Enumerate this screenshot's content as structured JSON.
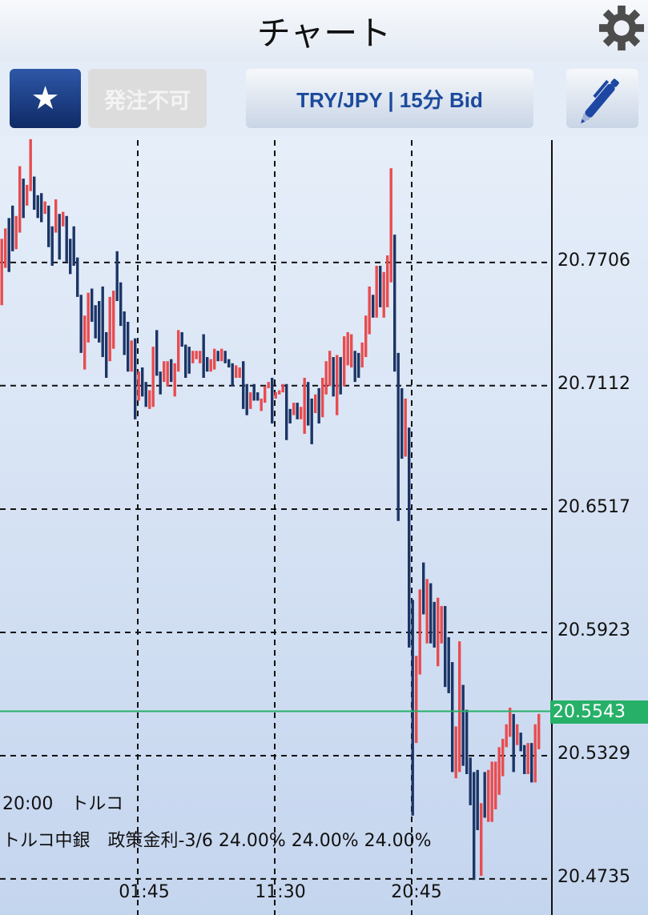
{
  "header": {
    "title": "チャート",
    "settings_icon": "gear-icon"
  },
  "toolbar": {
    "favorite_icon": "star-icon",
    "order_label": "発注不可",
    "pair_label": "TRY/JPY | 15分 Bid",
    "draw_icon": "pen-icon"
  },
  "colors": {
    "up": "#e84c4f",
    "down": "#1b3566",
    "current": "#27b068",
    "grid": "#111111"
  },
  "events": {
    "line1": "20:00　トルコ",
    "line2": "トルコ中銀　政策金利-3/6 24.00% 24.00% 24.00%"
  },
  "chart_data": {
    "type": "candlestick",
    "symbol": "TRY/JPY",
    "timeframe": "15分",
    "price_type": "Bid",
    "ylim": [
      20.4561,
      20.8315
    ],
    "y_ticks": [
      "20.7706",
      "20.7112",
      "20.6517",
      "20.5923",
      "20.5329",
      "20.4735"
    ],
    "x_ticks": [
      {
        "label": "01:45",
        "bar": 38
      },
      {
        "label": "11:30",
        "bar": 76
      },
      {
        "label": "20:45",
        "bar": 114
      }
    ],
    "grid": true,
    "current_price": "20.5543",
    "bars_format": [
      "high",
      "low",
      "up"
    ],
    "bars": [
      [
        20.782,
        20.75,
        1
      ],
      [
        20.787,
        20.768,
        1
      ],
      [
        20.792,
        20.766,
        0
      ],
      [
        20.798,
        20.776,
        0
      ],
      [
        20.793,
        20.777,
        1
      ],
      [
        20.817,
        20.785,
        1
      ],
      [
        20.811,
        20.792,
        0
      ],
      [
        20.808,
        20.798,
        1
      ],
      [
        20.83,
        20.805,
        1
      ],
      [
        20.812,
        20.796,
        0
      ],
      [
        20.803,
        20.792,
        0
      ],
      [
        20.804,
        20.79,
        0
      ],
      [
        20.8,
        20.794,
        1
      ],
      [
        20.798,
        20.778,
        0
      ],
      [
        20.788,
        20.769,
        0
      ],
      [
        20.801,
        20.785,
        1
      ],
      [
        20.794,
        20.772,
        0
      ],
      [
        20.795,
        20.788,
        1
      ],
      [
        20.793,
        20.771,
        0
      ],
      [
        20.782,
        20.765,
        0
      ],
      [
        20.788,
        20.769,
        0
      ],
      [
        20.773,
        20.754,
        0
      ],
      [
        20.755,
        20.727,
        0
      ],
      [
        20.745,
        20.719,
        1
      ],
      [
        20.756,
        20.732,
        1
      ],
      [
        20.758,
        20.742,
        0
      ],
      [
        20.75,
        20.734,
        0
      ],
      [
        20.752,
        20.732,
        0
      ],
      [
        20.759,
        20.725,
        0
      ],
      [
        20.737,
        20.715,
        0
      ],
      [
        20.754,
        20.723,
        1
      ],
      [
        20.757,
        20.729,
        1
      ],
      [
        20.776,
        20.752,
        0
      ],
      [
        20.761,
        20.74,
        0
      ],
      [
        20.747,
        20.726,
        0
      ],
      [
        20.742,
        20.718,
        0
      ],
      [
        20.733,
        20.718,
        1
      ],
      [
        20.734,
        20.695,
        0
      ],
      [
        20.718,
        20.704,
        1
      ],
      [
        20.72,
        20.706,
        0
      ],
      [
        20.713,
        20.701,
        0
      ],
      [
        20.709,
        20.7,
        1
      ],
      [
        20.73,
        20.701,
        1
      ],
      [
        20.738,
        20.716,
        0
      ],
      [
        20.718,
        20.707,
        0
      ],
      [
        20.723,
        20.713,
        1
      ],
      [
        20.723,
        20.711,
        1
      ],
      [
        20.724,
        20.713,
        0
      ],
      [
        20.722,
        20.706,
        1
      ],
      [
        20.738,
        20.718,
        1
      ],
      [
        20.737,
        20.73,
        0
      ],
      [
        20.731,
        20.715,
        0
      ],
      [
        20.73,
        20.717,
        0
      ],
      [
        20.728,
        20.722,
        1
      ],
      [
        20.728,
        20.724,
        1
      ],
      [
        20.728,
        20.722,
        1
      ],
      [
        20.736,
        20.715,
        0
      ],
      [
        20.725,
        20.718,
        0
      ],
      [
        20.724,
        20.718,
        1
      ],
      [
        20.729,
        20.719,
        1
      ],
      [
        20.728,
        20.723,
        0
      ],
      [
        20.729,
        20.723,
        1
      ],
      [
        20.728,
        20.722,
        0
      ],
      [
        20.724,
        20.72,
        0
      ],
      [
        20.722,
        20.711,
        0
      ],
      [
        20.721,
        20.715,
        1
      ],
      [
        20.72,
        20.715,
        1
      ],
      [
        20.723,
        20.7,
        0
      ],
      [
        20.712,
        20.697,
        0
      ],
      [
        20.708,
        20.7,
        1
      ],
      [
        20.712,
        20.704,
        0
      ],
      [
        20.708,
        20.704,
        0
      ],
      [
        20.705,
        20.699,
        1
      ],
      [
        20.711,
        20.703,
        1
      ],
      [
        20.713,
        20.71,
        1
      ],
      [
        20.715,
        20.693,
        0
      ],
      [
        20.708,
        20.705,
        1
      ],
      [
        20.709,
        20.707,
        1
      ],
      [
        20.712,
        20.708,
        1
      ],
      [
        20.712,
        20.685,
        0
      ],
      [
        20.7,
        20.693,
        0
      ],
      [
        20.703,
        20.697,
        1
      ],
      [
        20.703,
        20.695,
        0
      ],
      [
        20.701,
        20.695,
        1
      ],
      [
        20.715,
        20.688,
        1
      ],
      [
        20.713,
        20.692,
        0
      ],
      [
        20.705,
        20.683,
        0
      ],
      [
        20.707,
        20.698,
        1
      ],
      [
        20.71,
        20.693,
        0
      ],
      [
        20.715,
        20.696,
        1
      ],
      [
        20.723,
        20.707,
        1
      ],
      [
        20.728,
        20.711,
        1
      ],
      [
        20.725,
        20.706,
        0
      ],
      [
        20.726,
        20.697,
        1
      ],
      [
        20.725,
        20.707,
        0
      ],
      [
        20.735,
        20.711,
        1
      ],
      [
        20.737,
        20.721,
        1
      ],
      [
        20.736,
        20.72,
        1
      ],
      [
        20.728,
        20.713,
        0
      ],
      [
        20.727,
        20.715,
        0
      ],
      [
        20.732,
        20.72,
        1
      ],
      [
        20.745,
        20.725,
        1
      ],
      [
        20.759,
        20.736,
        1
      ],
      [
        20.755,
        20.744,
        0
      ],
      [
        20.769,
        20.744,
        1
      ],
      [
        20.769,
        20.749,
        0
      ],
      [
        20.766,
        20.744,
        1
      ],
      [
        20.774,
        20.749,
        1
      ],
      [
        20.816,
        20.761,
        1
      ],
      [
        20.784,
        20.718,
        0
      ],
      [
        20.727,
        20.646,
        0
      ],
      [
        20.71,
        20.676,
        0
      ],
      [
        20.705,
        20.677,
        1
      ],
      [
        20.691,
        20.585,
        0
      ],
      [
        20.608,
        20.504,
        0
      ],
      [
        20.581,
        20.539,
        1
      ],
      [
        20.613,
        20.572,
        1
      ],
      [
        20.626,
        20.601,
        0
      ],
      [
        20.618,
        20.587,
        1
      ],
      [
        20.616,
        20.587,
        0
      ],
      [
        20.607,
        20.585,
        0
      ],
      [
        20.609,
        20.576,
        1
      ],
      [
        20.605,
        20.587,
        1
      ],
      [
        20.605,
        20.566,
        0
      ],
      [
        20.59,
        20.563,
        0
      ],
      [
        20.578,
        20.525,
        0
      ],
      [
        20.547,
        20.522,
        1
      ],
      [
        20.588,
        20.525,
        1
      ],
      [
        20.567,
        20.528,
        0
      ],
      [
        20.555,
        20.524,
        0
      ],
      [
        20.532,
        20.509,
        0
      ],
      [
        20.525,
        20.473,
        0
      ],
      [
        20.526,
        20.497,
        0
      ],
      [
        20.51,
        20.475,
        1
      ],
      [
        20.525,
        20.503,
        0
      ],
      [
        20.526,
        20.501,
        1
      ],
      [
        20.53,
        20.501,
        1
      ],
      [
        20.53,
        20.507,
        1
      ],
      [
        20.537,
        20.514,
        1
      ],
      [
        20.541,
        20.523,
        1
      ],
      [
        20.548,
        20.537,
        1
      ],
      [
        20.556,
        20.542,
        1
      ],
      [
        20.553,
        20.525,
        0
      ],
      [
        20.548,
        20.538,
        1
      ],
      [
        20.544,
        20.535,
        0
      ],
      [
        20.538,
        20.524,
        0
      ],
      [
        20.539,
        20.524,
        1
      ],
      [
        20.539,
        20.52,
        0
      ],
      [
        20.548,
        20.52,
        1
      ],
      [
        20.553,
        20.536,
        1
      ]
    ]
  }
}
